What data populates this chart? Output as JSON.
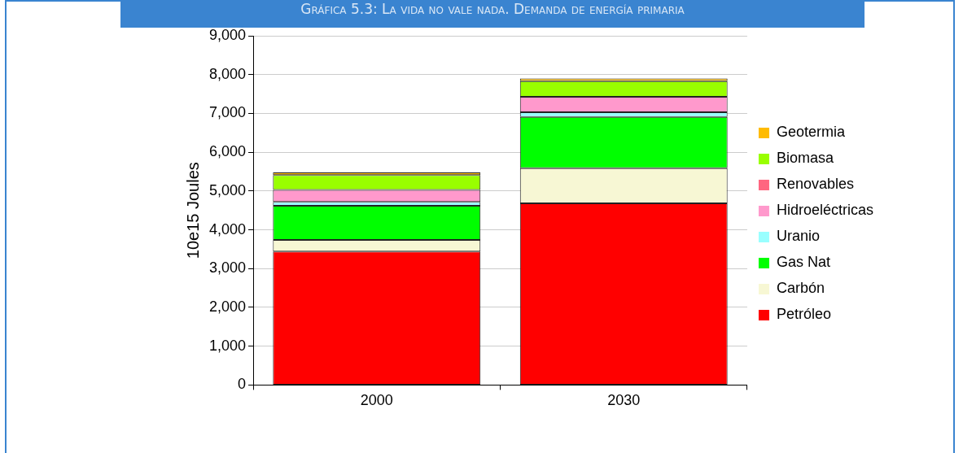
{
  "chart_data": {
    "type": "bar",
    "title": "Gráfica 5.3: La vida no vale nada. Demanda de energía primaria",
    "ylabel": "10e15 Joules",
    "categories": [
      "2000",
      "2030"
    ],
    "stacked": true,
    "legend": "right",
    "grid": "y",
    "ylim": [
      0,
      9000
    ],
    "yticks": [
      {
        "value": 0,
        "label": "0"
      },
      {
        "value": 1000,
        "label": "1,000"
      },
      {
        "value": 2000,
        "label": "2,000"
      },
      {
        "value": 3000,
        "label": "3,000"
      },
      {
        "value": 4000,
        "label": "4,000"
      },
      {
        "value": 5000,
        "label": "5,000"
      },
      {
        "value": 6000,
        "label": "6,000"
      },
      {
        "value": 7000,
        "label": "7,000"
      },
      {
        "value": 8000,
        "label": "8,000"
      },
      {
        "value": 9000,
        "label": "9,000"
      }
    ],
    "series": [
      {
        "name": "Petróleo",
        "color": "#ff0000",
        "values": [
          3440,
          4680
        ]
      },
      {
        "name": "Carbón",
        "color": "#f7f7d4",
        "values": [
          300,
          910
        ]
      },
      {
        "name": "Gas Nat",
        "color": "#00ff00",
        "values": [
          880,
          1320
        ]
      },
      {
        "name": "Uranio",
        "color": "#99ffff",
        "values": [
          100,
          120
        ]
      },
      {
        "name": "Hidroeléctricas",
        "color": "#ff99cc",
        "values": [
          310,
          400
        ]
      },
      {
        "name": "Renovables",
        "color": "#ff6680",
        "values": [
          0,
          0
        ]
      },
      {
        "name": "Biomasa",
        "color": "#99ff00",
        "values": [
          380,
          400
        ]
      },
      {
        "name": "Geotermia",
        "color": "#ffbb00",
        "values": [
          70,
          70
        ]
      }
    ]
  }
}
